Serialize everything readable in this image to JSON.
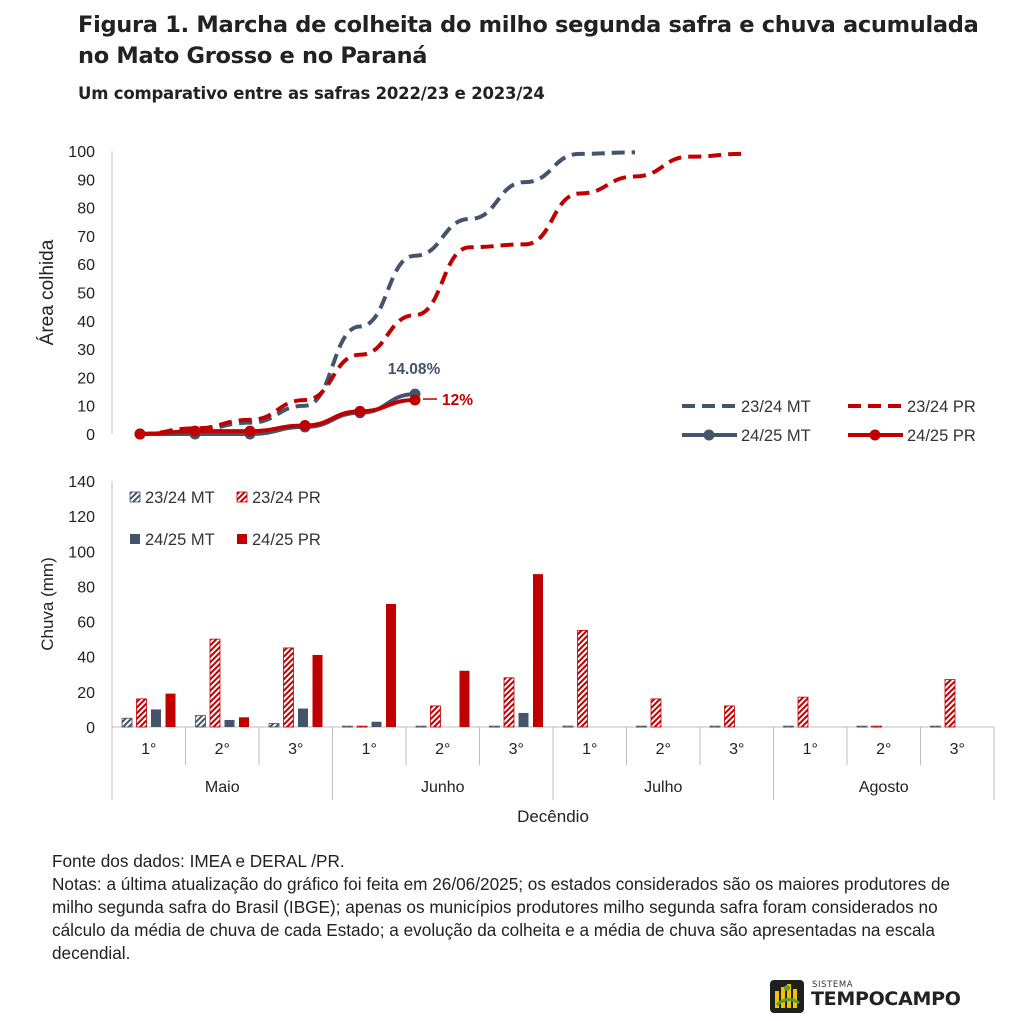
{
  "header": {
    "title": "Figura 1. Marcha de colheita do milho segunda safra e chuva acumulada no Mato Grosso e no Paraná",
    "subtitle": "Um comparativo entre as safras 2022/23 e 2023/24"
  },
  "colors": {
    "mt": "#44546a",
    "pr": "#c00000"
  },
  "chart_data": [
    {
      "type": "line",
      "ylabel": "Área colhida",
      "ylim": [
        0,
        100
      ],
      "yticks": [
        0,
        10,
        20,
        30,
        40,
        50,
        60,
        70,
        80,
        90,
        100
      ],
      "grid": false,
      "legend_position": "bottom-right",
      "x": [
        "Maio 1°",
        "Maio 2°",
        "Maio 3°",
        "Junho 1°",
        "Junho 2°",
        "Junho 3°",
        "Julho 1°",
        "Julho 2°",
        "Julho 3°",
        "Agosto 1°",
        "Agosto 2°",
        "Agosto 3°"
      ],
      "series": [
        {
          "name": "23/24 MT",
          "style": "dashed",
          "color": "#44546a",
          "values": [
            0,
            1.5,
            4,
            10,
            38,
            63,
            76,
            89,
            99,
            99.5,
            null,
            null
          ]
        },
        {
          "name": "23/24 PR",
          "style": "dashed",
          "color": "#c00000",
          "values": [
            0,
            2,
            5,
            12,
            28,
            42,
            66,
            67,
            85,
            91,
            98,
            99
          ]
        },
        {
          "name": "24/25 MT",
          "style": "solid",
          "color": "#44546a",
          "values": [
            0,
            0,
            0,
            2.5,
            7.5,
            14.08,
            null,
            null,
            null,
            null,
            null,
            null
          ]
        },
        {
          "name": "24/25 PR",
          "style": "solid",
          "color": "#c00000",
          "values": [
            0,
            1,
            1,
            3,
            8,
            12,
            null,
            null,
            null,
            null,
            null,
            null
          ]
        }
      ],
      "annotations": [
        {
          "series": "24/25 MT",
          "text": "14.08%"
        },
        {
          "series": "24/25 PR",
          "text": "12%"
        }
      ]
    },
    {
      "type": "bar",
      "ylabel": "Chuva (mm)",
      "xlabel": "Decêndio",
      "ylim": [
        0,
        140
      ],
      "yticks": [
        0,
        20,
        40,
        60,
        80,
        100,
        120,
        140
      ],
      "grid": false,
      "legend_position": "top-left",
      "categories": [
        "1°",
        "2°",
        "3°",
        "1°",
        "2°",
        "3°",
        "1°",
        "2°",
        "3°",
        "1°",
        "2°",
        "3°"
      ],
      "groups": [
        "Maio",
        "Junho",
        "Julho",
        "Agosto"
      ],
      "series": [
        {
          "name": "23/24 MT",
          "pattern": "hatched",
          "color": "#44546a",
          "values": [
            5,
            6.5,
            2,
            0.5,
            0.5,
            0.5,
            0.5,
            0.5,
            0.5,
            0.5,
            0.5,
            0.5
          ]
        },
        {
          "name": "23/24 PR",
          "pattern": "hatched",
          "color": "#c00000",
          "values": [
            16,
            50,
            45,
            0.5,
            12,
            28,
            55,
            16,
            12,
            17,
            0.5,
            27
          ]
        },
        {
          "name": "24/25 MT",
          "pattern": "solid",
          "color": "#44546a",
          "values": [
            10,
            4,
            10.5,
            3,
            0,
            8,
            0,
            0,
            0,
            0,
            0,
            0
          ]
        },
        {
          "name": "24/25 PR",
          "pattern": "solid",
          "color": "#c00000",
          "values": [
            19,
            5.5,
            41,
            70,
            32,
            87,
            0,
            0,
            0,
            0,
            0,
            0
          ]
        }
      ]
    }
  ],
  "footer": {
    "source": "Fonte dos dados: IMEA e DERAL /PR.",
    "notes": "Notas: a última atualização do gráfico foi feita em 26/06/2025; os estados considerados são os maiores produtores de milho segunda safra do Brasil (IBGE); apenas os municípios produtores milho segunda safra foram considerados no cálculo da média de chuva de cada Estado; a evolução da colheita e a média de chuva são apresentadas na escala decendial."
  },
  "logo": {
    "small_text": "SISTEMA",
    "text": "TEMPOCAMPO"
  }
}
